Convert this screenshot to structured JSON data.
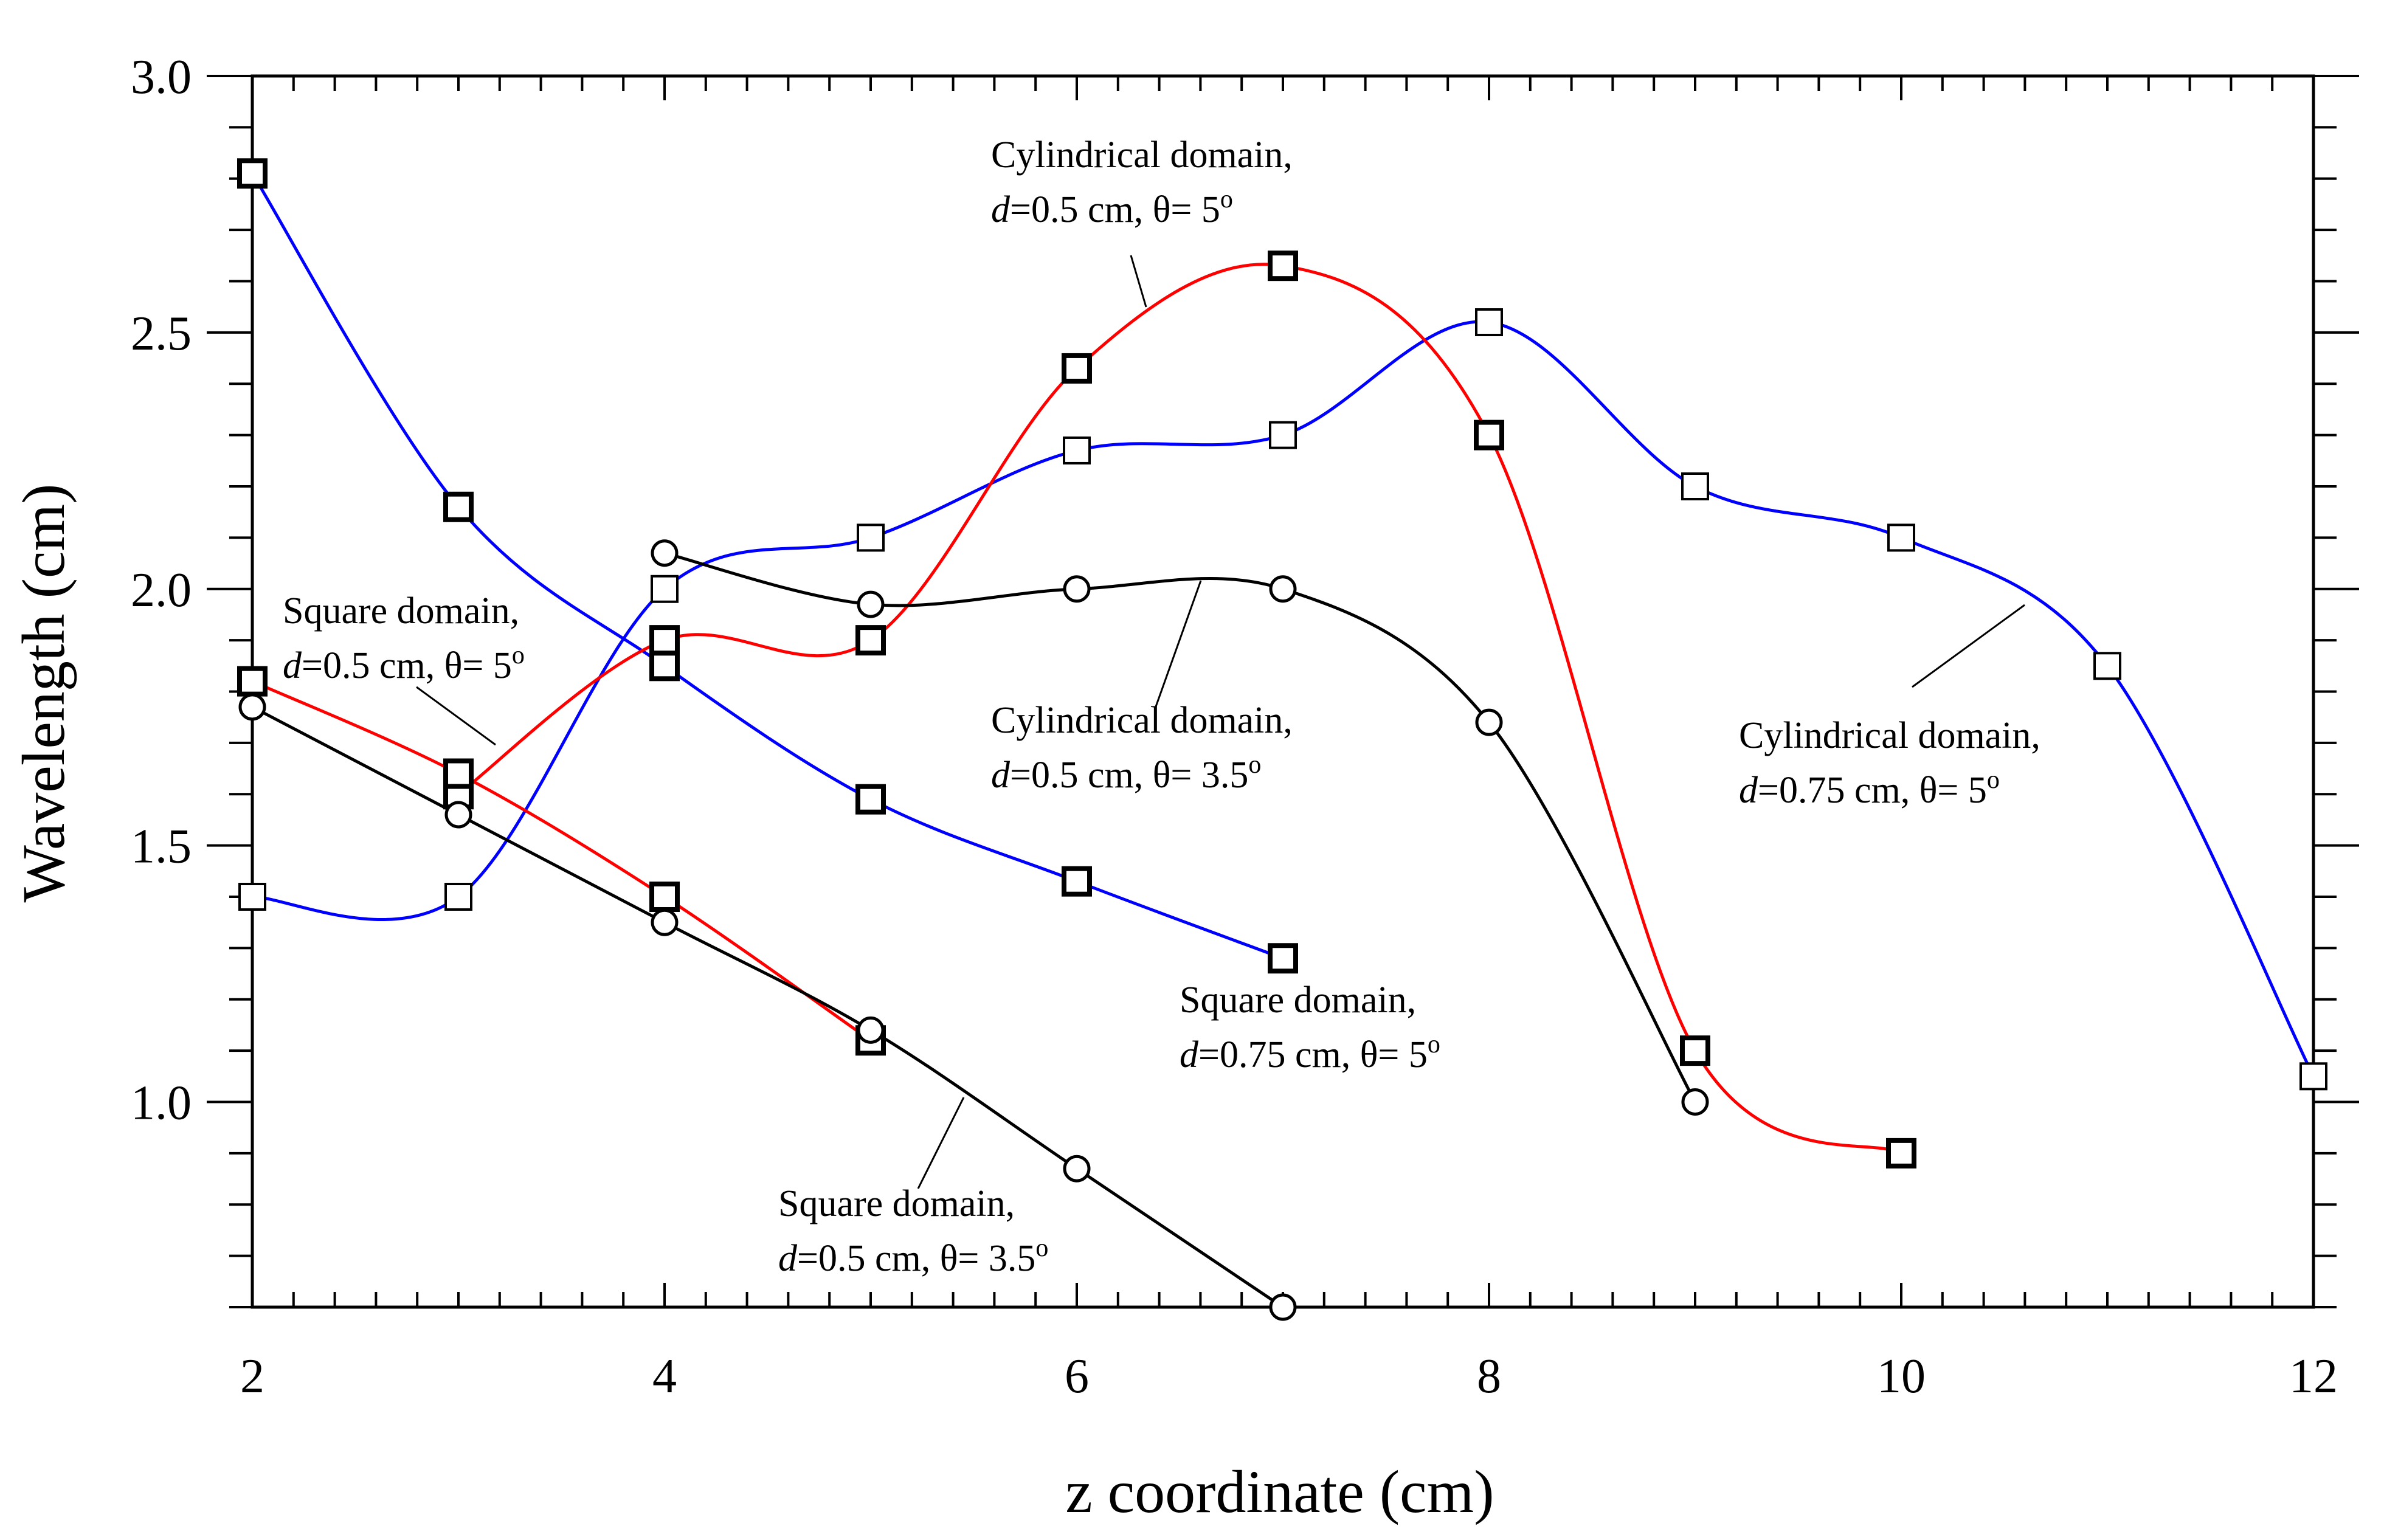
{
  "chart_data": {
    "type": "line",
    "title": "",
    "xlabel": "z coordinate (cm)",
    "ylabel": "Wavelength (cm)",
    "xlim": [
      2,
      12
    ],
    "ylim": [
      0.6,
      3.0
    ],
    "grid": false,
    "x_ticks": [
      "2",
      "4",
      "6",
      "8",
      "10",
      "12"
    ],
    "y_ticks": [
      "1.0",
      "1.5",
      "2.0",
      "2.5",
      "3.0"
    ],
    "series": [
      {
        "name": "Square domain, d=0.75 cm, θ=5°",
        "color": "#0000ff",
        "marker": "square-bold",
        "x": [
          2,
          3,
          4,
          5,
          6,
          7
        ],
        "y": [
          2.81,
          2.16,
          1.85,
          1.59,
          1.43,
          1.28
        ]
      },
      {
        "name": "Cylindrical domain, d=0.75 cm, θ=5°",
        "color": "#0000ff",
        "marker": "square-open",
        "x": [
          2,
          3,
          4,
          5,
          6,
          7,
          8,
          9,
          10,
          11,
          12
        ],
        "y": [
          1.4,
          1.4,
          2.0,
          2.1,
          2.27,
          2.3,
          2.52,
          2.2,
          2.1,
          1.85,
          1.05
        ]
      },
      {
        "name": "Cylindrical domain, d=0.5 cm, θ=5°",
        "color": "#ff0000",
        "marker": "square-bold",
        "x": [
          3,
          4,
          5,
          6,
          7,
          8,
          9,
          10
        ],
        "y": [
          1.6,
          1.9,
          1.9,
          2.43,
          2.63,
          2.3,
          1.1,
          0.9
        ]
      },
      {
        "name": "Square domain, d=0.5 cm, θ=5°",
        "color": "#ff0000",
        "marker": "square-bold",
        "x": [
          2,
          3,
          4,
          5
        ],
        "y": [
          1.82,
          1.64,
          1.4,
          1.12
        ]
      },
      {
        "name": "Cylindrical domain, d=0.5 cm, θ=3.5°",
        "color": "#000000",
        "marker": "circle",
        "x": [
          4,
          5,
          6,
          7,
          8,
          9
        ],
        "y": [
          2.07,
          1.97,
          2.0,
          2.0,
          1.74,
          1.0
        ]
      },
      {
        "name": "Square domain, d=0.5 cm, θ=3.5°",
        "color": "#000000",
        "marker": "circle",
        "x": [
          2,
          3,
          4,
          5,
          6,
          7
        ],
        "y": [
          1.77,
          1.56,
          1.35,
          1.14,
          0.87,
          0.6
        ]
      }
    ],
    "annotations": [
      {
        "id": "cyl_05_5",
        "line1": "Cylindrical domain,",
        "d_label": "d",
        "line2_rest": "=0.5 cm, θ= 5",
        "degree": "o"
      },
      {
        "id": "sq_05_5",
        "line1": "Square domain,",
        "d_label": "d",
        "line2_rest": "=0.5 cm, θ= 5",
        "degree": "o"
      },
      {
        "id": "cyl_05_35",
        "line1": "Cylindrical domain,",
        "d_label": "d",
        "line2_rest": "=0.5 cm, θ= 3.5",
        "degree": "o"
      },
      {
        "id": "cyl_075_5",
        "line1": "Cylindrical domain,",
        "d_label": "d",
        "line2_rest": "=0.75 cm, θ= 5",
        "degree": "o"
      },
      {
        "id": "sq_075_5",
        "line1": "Square domain,",
        "d_label": "d",
        "line2_rest": "=0.75 cm, θ= 5",
        "degree": "o"
      },
      {
        "id": "sq_05_35",
        "line1": "Square domain,",
        "d_label": "d",
        "line2_rest": "=0.5 cm, θ= 3.5",
        "degree": "o"
      }
    ]
  }
}
